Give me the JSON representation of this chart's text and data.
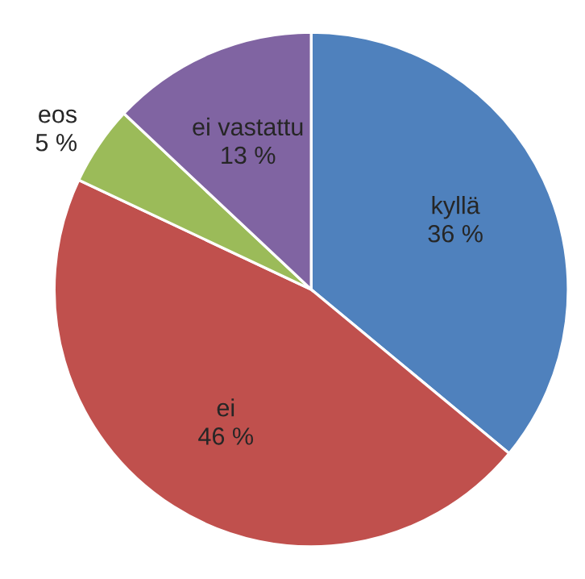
{
  "chart_data": {
    "type": "pie",
    "categories": [
      "kyllä",
      "ei",
      "eos",
      "ei vastattu"
    ],
    "values": [
      36,
      46,
      5,
      13
    ],
    "value_labels": [
      "36 %",
      "46 %",
      "5 %",
      "13 %"
    ],
    "colors": [
      "#4f81bd",
      "#c0504d",
      "#9bbb59",
      "#8064a2"
    ]
  }
}
